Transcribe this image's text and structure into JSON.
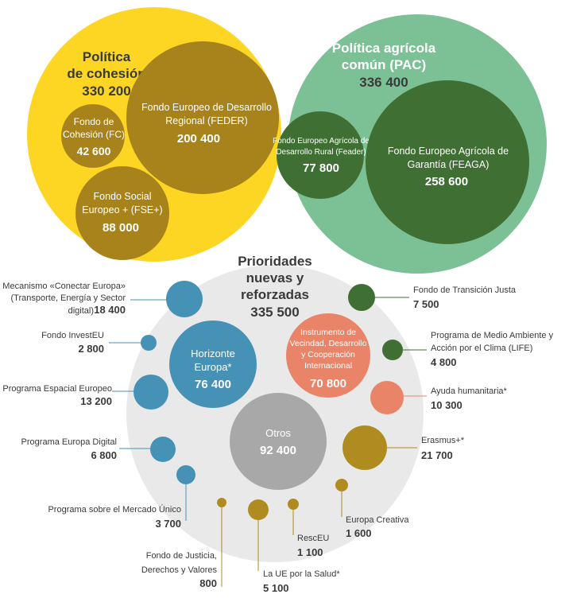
{
  "colors": {
    "cohesion_outer": "#fcd623",
    "cohesion_inner": "#a8821b",
    "pac_outer": "#7cc095",
    "pac_inner": "#3f6f32",
    "prior_bg": "#e9e9e9",
    "blue": "#4692b6",
    "salmon": "#e98468",
    "gray": "#a8a8a8",
    "gold": "#b08c20",
    "green": "#3f6f32",
    "text": "#3a3a3a",
    "connector": "#4692b6"
  },
  "cohesion": {
    "title_line1": "Política",
    "title_line2": "de cohesión",
    "value": "330 200",
    "feder": {
      "line1": "Fondo Europeo de Desarrollo",
      "line2": "Regional (FEDER)",
      "value": "200 400"
    },
    "fc": {
      "line1": "Fondo de",
      "line2": "Cohesión (FC)",
      "value": "42 600"
    },
    "fse": {
      "line1": "Fondo Social",
      "line2": "Europeo + (FSE+)",
      "value": "88 000"
    }
  },
  "pac": {
    "title_line1": "Política agrícola",
    "title_line2": "común (PAC)",
    "value": "336 400",
    "feader": {
      "line1": "Fondo Europeo Agrícola de",
      "line2": "Desarrollo Rural (Feader)",
      "value": "77 800"
    },
    "feaga": {
      "line1": "Fondo Europeo Agrícola de",
      "line2": "Garantía (FEAGA)",
      "value": "258 600"
    }
  },
  "priorities": {
    "title_line1": "Prioridades",
    "title_line2": "nuevas y",
    "title_line3": "reforzadas",
    "value": "335 500",
    "horizonte": {
      "line1": "Horizonte",
      "line2": "Europa*",
      "value": "76 400"
    },
    "ivdci": {
      "line1": "Instrumento de",
      "line2": "Vecindad, Desarrollo",
      "line3": "y Cooperación",
      "line4": "Internacional",
      "value": "70 800"
    },
    "otros": {
      "line1": "Otros",
      "value": "92 400"
    },
    "cef": {
      "line1": "Mecanismo «Conectar Europa»",
      "line2": "(Transporte, Energía y Sector",
      "line3": "digital)",
      "value": "18 400"
    },
    "investeu": {
      "line1": "Fondo InvestEU",
      "value": "2 800"
    },
    "espacial": {
      "line1": "Programa Espacial Europeo",
      "value": "13 200"
    },
    "digital": {
      "line1": "Programa Europa Digital",
      "value": "6 800"
    },
    "mercado": {
      "line1": "Programa sobre el Mercado Único",
      "value": "3 700"
    },
    "justicia": {
      "line1": "Fondo de Justicia,",
      "line2": "Derechos y Valores",
      "value": "800"
    },
    "salud": {
      "line1": "La UE por la Salud*",
      "value": "5 100"
    },
    "rescue": {
      "line1": "RescEU",
      "value": "1 100"
    },
    "creativa": {
      "line1": "Europa Creativa",
      "value": "1 600"
    },
    "erasmus": {
      "line1": "Erasmus+*",
      "value": "21 700"
    },
    "humanitaria": {
      "line1": "Ayuda humanitaria*",
      "value": "10 300"
    },
    "life": {
      "line1": "Programa de Medio Ambiente y",
      "line2": "Acción por el Clima (LIFE)",
      "value": "4 800"
    },
    "transicion": {
      "line1": "Fondo de Transición Justa",
      "value": "7 500"
    }
  }
}
